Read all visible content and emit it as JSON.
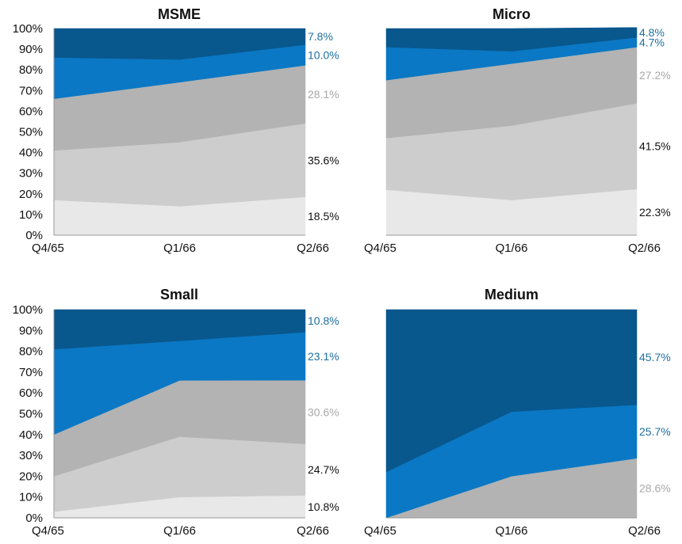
{
  "colors": {
    "layer1": "#e8e8e8",
    "layer2": "#cdcdcd",
    "layer3": "#b3b3b3",
    "layer4": "#0a78c4",
    "layer5": "#08578d",
    "label_dark": "#111111",
    "label_gray": "#a8a8a8",
    "label_blue": "#1d6fa0"
  },
  "chart_data": [
    {
      "type": "area",
      "stacked": true,
      "normalized": true,
      "title": "MSME",
      "categories": [
        "Q4/65",
        "Q1/66",
        "Q2/66"
      ],
      "y_ticks": [
        "0%",
        "10%",
        "20%",
        "30%",
        "40%",
        "50%",
        "60%",
        "70%",
        "80%",
        "90%",
        "100%"
      ],
      "ylim": [
        0,
        100
      ],
      "series": [
        {
          "values": [
            17,
            14,
            18.5
          ],
          "label": "18.5%",
          "color": "#e8e8e8",
          "label_color": "#111111"
        },
        {
          "values": [
            24,
            31,
            35.6
          ],
          "label": "35.6%",
          "color": "#cdcdcd",
          "label_color": "#111111"
        },
        {
          "values": [
            25,
            29,
            28.1
          ],
          "label": "28.1%",
          "color": "#b3b3b3",
          "label_color": "#a8a8a8"
        },
        {
          "values": [
            20,
            11,
            10.0
          ],
          "label": "10.0%",
          "color": "#0a78c4",
          "label_color": "#1d6fa0"
        },
        {
          "values": [
            14,
            15,
            7.8
          ],
          "label": "7.8%",
          "color": "#08578d",
          "label_color": "#1d6fa0"
        }
      ]
    },
    {
      "type": "area",
      "stacked": true,
      "normalized": true,
      "title": "Micro",
      "categories": [
        "Q4/65",
        "Q1/66",
        "Q2/66"
      ],
      "y_ticks": [],
      "ylim": [
        0,
        100
      ],
      "series": [
        {
          "values": [
            22,
            17,
            22.3
          ],
          "label": "22.3%",
          "color": "#e8e8e8",
          "label_color": "#111111"
        },
        {
          "values": [
            25,
            36,
            41.5
          ],
          "label": "41.5%",
          "color": "#cdcdcd",
          "label_color": "#111111"
        },
        {
          "values": [
            28,
            30,
            27.2
          ],
          "label": "27.2%",
          "color": "#b3b3b3",
          "label_color": "#a8a8a8"
        },
        {
          "values": [
            16,
            6,
            4.7
          ],
          "label": "4.7%",
          "color": "#0a78c4",
          "label_color": "#1d6fa0"
        },
        {
          "values": [
            9,
            11,
            4.8
          ],
          "label": "4.8%",
          "color": "#08578d",
          "label_color": "#1d6fa0"
        }
      ]
    },
    {
      "type": "area",
      "stacked": true,
      "normalized": true,
      "title": "Small",
      "categories": [
        "Q4/65",
        "Q1/66",
        "Q2/66"
      ],
      "y_ticks": [
        "0%",
        "10%",
        "20%",
        "30%",
        "40%",
        "50%",
        "60%",
        "70%",
        "80%",
        "90%",
        "100%"
      ],
      "ylim": [
        0,
        100
      ],
      "series": [
        {
          "values": [
            3,
            10,
            10.8
          ],
          "label": "10.8%",
          "color": "#e8e8e8",
          "label_color": "#111111"
        },
        {
          "values": [
            17,
            29,
            24.7
          ],
          "label": "24.7%",
          "color": "#cdcdcd",
          "label_color": "#111111"
        },
        {
          "values": [
            20,
            27,
            30.6
          ],
          "label": "30.6%",
          "color": "#b3b3b3",
          "label_color": "#a8a8a8"
        },
        {
          "values": [
            41,
            19,
            23.1
          ],
          "label": "23.1%",
          "color": "#0a78c4",
          "label_color": "#1d6fa0"
        },
        {
          "values": [
            19,
            15,
            10.8
          ],
          "label": "10.8%",
          "color": "#08578d",
          "label_color": "#1d6fa0"
        }
      ]
    },
    {
      "type": "area",
      "stacked": true,
      "normalized": true,
      "title": "Medium",
      "categories": [
        "Q4/65",
        "Q1/66",
        "Q2/66"
      ],
      "y_ticks": [],
      "ylim": [
        0,
        100
      ],
      "series": [
        {
          "values": [
            0,
            20,
            28.6
          ],
          "label": "28.6%",
          "color": "#b3b3b3",
          "label_color": "#a8a8a8"
        },
        {
          "values": [
            22,
            31,
            25.7
          ],
          "label": "25.7%",
          "color": "#0a78c4",
          "label_color": "#1d6fa0"
        },
        {
          "values": [
            78,
            49,
            45.7
          ],
          "label": "45.7%",
          "color": "#08578d",
          "label_color": "#1d6fa0"
        }
      ]
    }
  ]
}
